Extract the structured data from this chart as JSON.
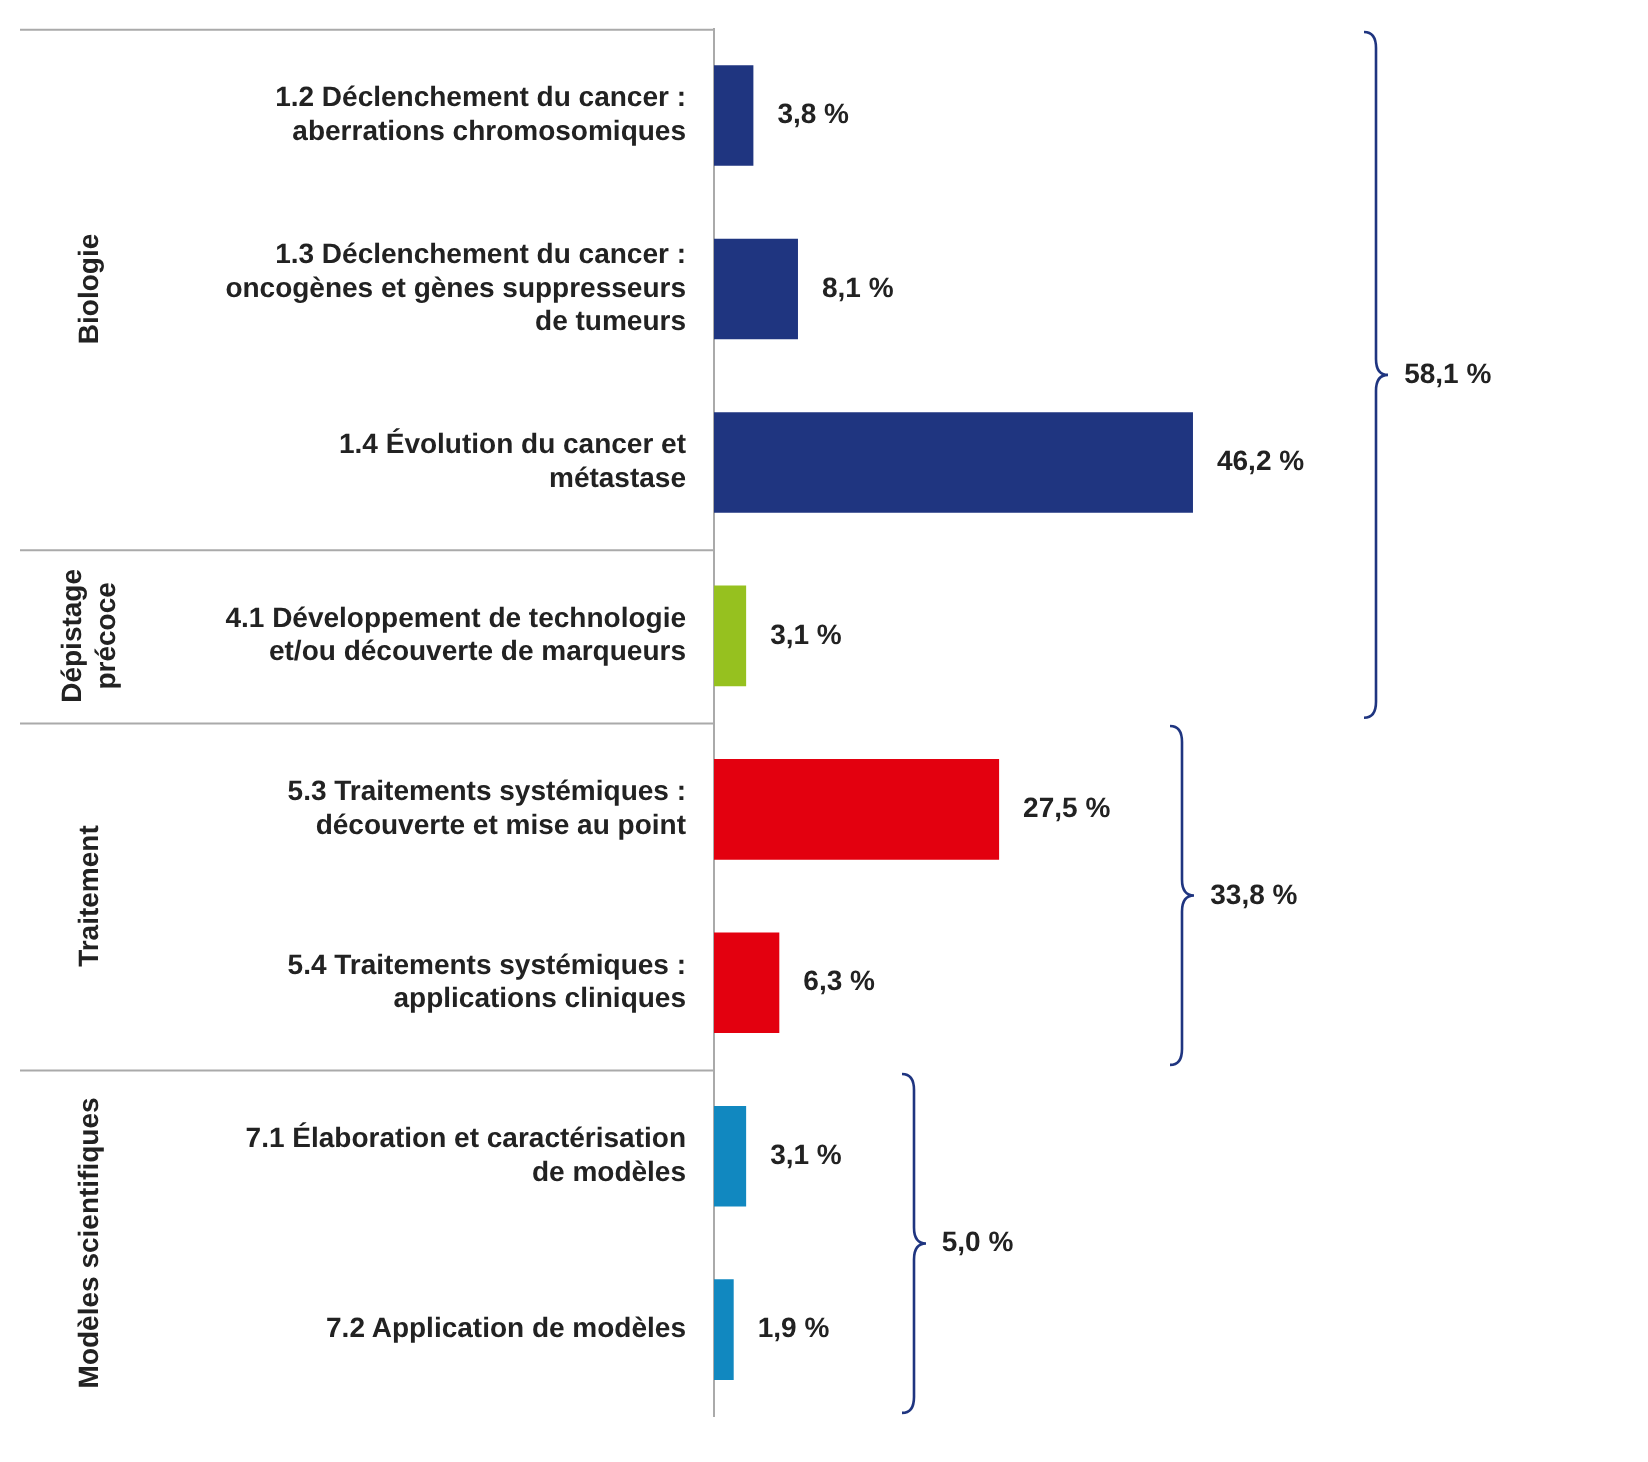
{
  "chart_data": {
    "type": "bar",
    "orientation": "horizontal",
    "tick_labels": "y",
    "categories": [
      "1.2 Déclenchement du cancer : aberrations chromosomiques",
      "1.3  Déclenchement du cancer : oncogènes et gènes suppresseurs de tumeurs",
      "1.4  Évolution du cancer et métastase",
      "4.1 Développement de technologie et/ou découverte de marqueurs",
      "5.3  Traitements systémiques : découverte et mise au point",
      "5.4  Traitements systémiques : applications cliniques",
      "7.1 Élaboration et caractérisation de modèles",
      "7.2 Application de modèles"
    ],
    "values": [
      3.8,
      8.1,
      46.2,
      3.1,
      27.5,
      6.3,
      3.1,
      1.9
    ],
    "colors": [
      "#1f3580",
      "#1f3580",
      "#1f3580",
      "#96c11f",
      "#e3000f",
      "#e3000f",
      "#1188c0",
      "#1188c0"
    ],
    "value_labels": [
      "3,8 %",
      "8,1 %",
      "46,2 %",
      "3,1 %",
      "27,5 %",
      "6,3 %",
      "3,1 %",
      "1,9 %"
    ],
    "annotations": [
      "Biologie",
      "Dépistage précoce",
      "Traitement",
      "Modèles scientifiques",
      "58,1 %",
      "33,8 %",
      "5,0 %"
    ]
  }
}
